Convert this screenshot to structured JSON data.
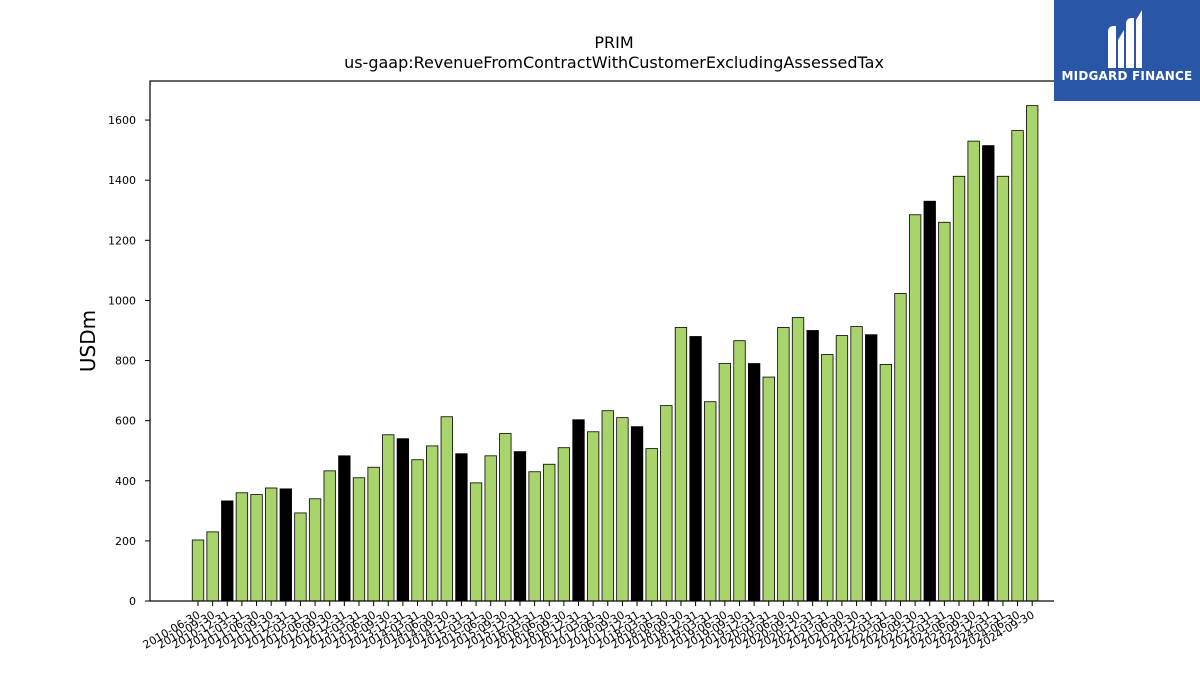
{
  "logo": {
    "text": "MIDGARD FINANCE",
    "icon": "midgard-logo-icon",
    "background": "#2a56a8"
  },
  "chart_data": {
    "type": "bar",
    "title": "PRIM",
    "subtitle": "us-gaap:RevenueFromContractWithCustomerExcludingAssessedTax",
    "xlabel": "",
    "ylabel": "USDm",
    "ylim": [
      0,
      1730
    ],
    "yticks": [
      0,
      200,
      400,
      600,
      800,
      1000,
      1200,
      1400,
      1600
    ],
    "grid": false,
    "colors": {
      "quarter": "#a9d46b",
      "fiscal_year_end": "#000000",
      "edge": "#000000"
    },
    "categories": [
      "2010-06-30",
      "2010-09-30",
      "2010-12-31",
      "2011-03-31",
      "2011-06-30",
      "2011-09-30",
      "2011-12-31",
      "2012-03-31",
      "2012-06-30",
      "2012-09-30",
      "2012-12-31",
      "2013-03-31",
      "2013-06-30",
      "2013-09-30",
      "2013-12-31",
      "2014-03-31",
      "2014-06-30",
      "2014-09-30",
      "2014-12-31",
      "2015-03-31",
      "2015-06-30",
      "2015-09-30",
      "2015-12-31",
      "2016-03-31",
      "2016-06-30",
      "2016-09-30",
      "2016-12-31",
      "2017-03-31",
      "2017-06-30",
      "2017-09-30",
      "2017-12-31",
      "2018-03-31",
      "2018-06-30",
      "2018-09-30",
      "2018-12-31",
      "2019-03-31",
      "2019-06-30",
      "2019-09-30",
      "2019-12-31",
      "2020-03-31",
      "2020-06-30",
      "2020-09-30",
      "2020-12-31",
      "2021-03-31",
      "2021-06-30",
      "2021-09-30",
      "2021-12-31",
      "2022-03-31",
      "2022-06-30",
      "2022-09-30",
      "2022-12-31",
      "2023-03-31",
      "2023-06-30",
      "2023-09-30",
      "2023-12-31",
      "2024-03-31",
      "2024-06-30",
      "2024-09-30"
    ],
    "values": [
      203,
      230,
      333,
      360,
      354,
      376,
      373,
      293,
      340,
      433,
      483,
      410,
      445,
      553,
      540,
      470,
      516,
      613,
      490,
      393,
      483,
      557,
      497,
      430,
      455,
      510,
      603,
      563,
      633,
      610,
      580,
      507,
      650,
      910,
      880,
      663,
      790,
      866,
      790,
      745,
      910,
      943,
      900,
      820,
      883,
      913,
      886,
      787,
      1023,
      1285,
      1330,
      1260,
      1413,
      1530,
      1515,
      1413,
      1565,
      1648
    ],
    "highlight": [
      false,
      false,
      true,
      false,
      false,
      false,
      true,
      false,
      false,
      false,
      true,
      false,
      false,
      false,
      true,
      false,
      false,
      false,
      true,
      false,
      false,
      false,
      true,
      false,
      false,
      false,
      true,
      false,
      false,
      false,
      true,
      false,
      false,
      false,
      true,
      false,
      false,
      false,
      true,
      false,
      false,
      false,
      true,
      false,
      false,
      false,
      true,
      false,
      false,
      false,
      true,
      false,
      false,
      false,
      true,
      false,
      false,
      false
    ]
  }
}
